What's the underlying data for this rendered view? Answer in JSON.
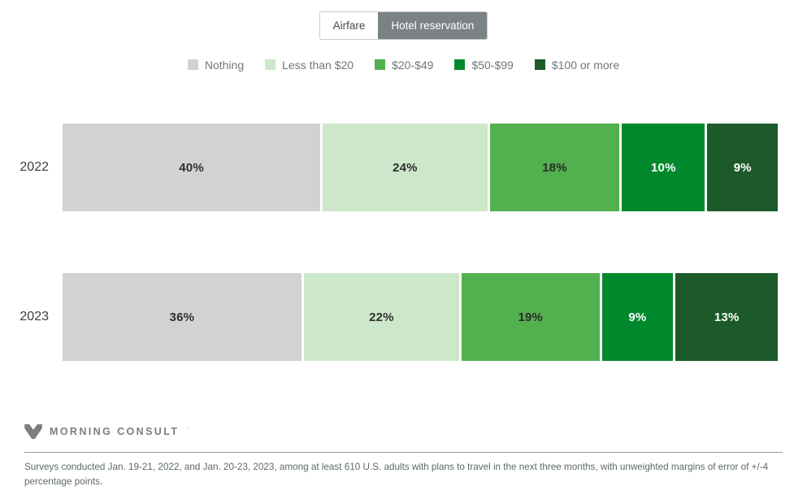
{
  "tabs": {
    "items": [
      {
        "label": "Airfare",
        "selected": false
      },
      {
        "label": "Hotel reservation",
        "selected": true
      }
    ],
    "selected_bg": "#7b8286",
    "unselected_bg": "#ffffff"
  },
  "chart_data": {
    "type": "bar",
    "orientation": "horizontal",
    "stacked": true,
    "categories": [
      "2022",
      "2023"
    ],
    "series": [
      {
        "name": "Nothing",
        "color": "#d2d2d2",
        "label_color": "#303030",
        "values": [
          40,
          36
        ]
      },
      {
        "name": "Less than $20",
        "color": "#cde7ca",
        "label_color": "#303030",
        "values": [
          24,
          22
        ]
      },
      {
        "name": "$20-$49",
        "color": "#53b04e",
        "label_color": "#2b2b2b",
        "values": [
          18,
          19
        ]
      },
      {
        "name": "$50-$99",
        "color": "#00892c",
        "label_color": "#ffffff",
        "values": [
          10,
          9
        ]
      },
      {
        "name": "$100 or more",
        "color": "#1c5b29",
        "label_color": "#ffffff",
        "values": [
          9,
          13
        ]
      }
    ],
    "value_suffix": "%",
    "title": "",
    "xlabel": "",
    "ylabel": "",
    "legend_position": "top",
    "axes_visible": false,
    "grid": false
  },
  "footer": {
    "brand": "MORNING CONSULT",
    "trademark": "'",
    "note": "Surveys conducted Jan. 19-21, 2022, and Jan. 20-23, 2023, among at least 610 U.S. adults with plans to travel in the next three months, with unweighted margins of error of +/-4 percentage points."
  }
}
